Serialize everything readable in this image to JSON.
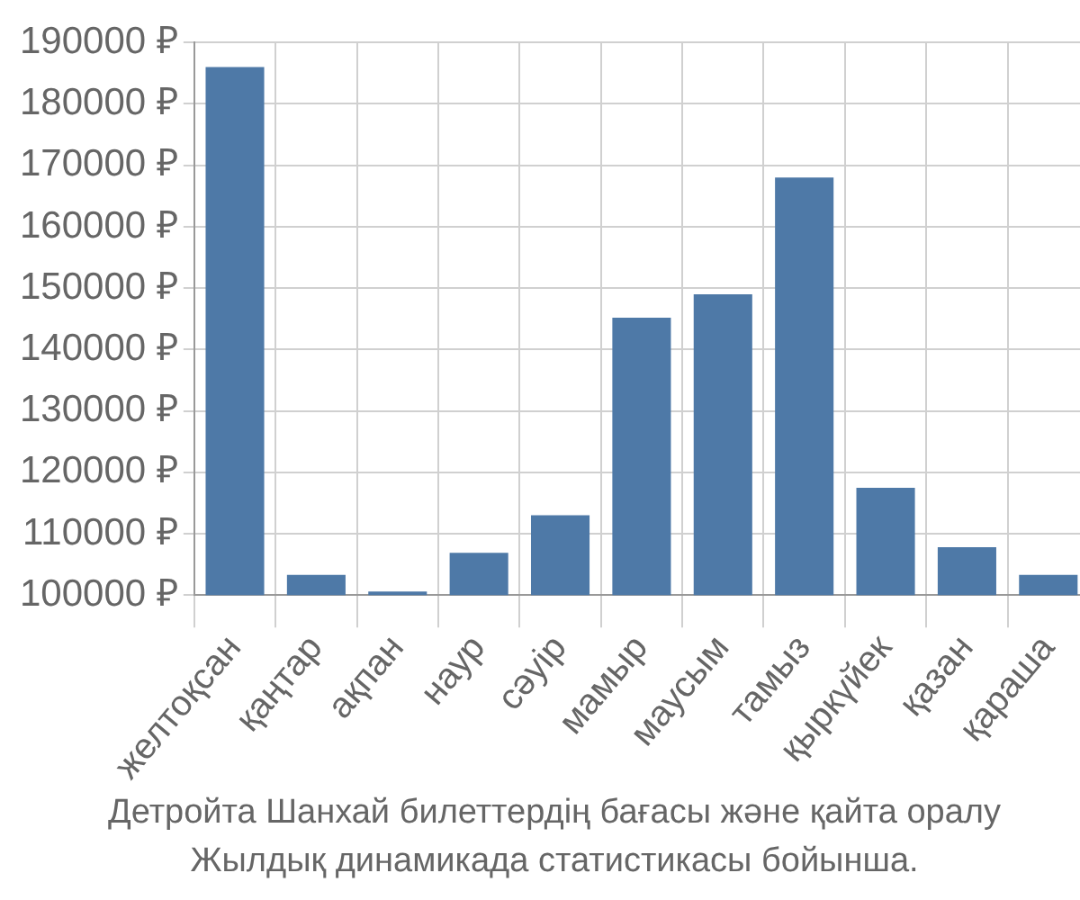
{
  "chart_data": {
    "type": "bar",
    "categories": [
      "желтоқсан",
      "қаңтар",
      "ақпан",
      "наур",
      "сәуір",
      "мамыр",
      "маусым",
      "тамыз",
      "қыркүйек",
      "қазан",
      "қараша"
    ],
    "values": [
      186000,
      103300,
      100600,
      106900,
      113000,
      145200,
      149000,
      168000,
      117500,
      107800,
      103300
    ],
    "color": "#4e79a7",
    "ylim": [
      100000,
      190000
    ],
    "yticks": [
      {
        "value": 100000,
        "label": "100000 ₽"
      },
      {
        "value": 110000,
        "label": "110000 ₽"
      },
      {
        "value": 120000,
        "label": "120000 ₽"
      },
      {
        "value": 130000,
        "label": "130000 ₽"
      },
      {
        "value": 140000,
        "label": "140000 ₽"
      },
      {
        "value": 150000,
        "label": "150000 ₽"
      },
      {
        "value": 160000,
        "label": "160000 ₽"
      },
      {
        "value": 170000,
        "label": "170000 ₽"
      },
      {
        "value": 180000,
        "label": "180000 ₽"
      },
      {
        "value": 190000,
        "label": "190000 ₽"
      }
    ],
    "grid": true,
    "annotations": [
      "Детройта Шанхай билеттердің бағасы және қайта оралу",
      "Жылдық динамикада статистикасы бойынша."
    ]
  }
}
